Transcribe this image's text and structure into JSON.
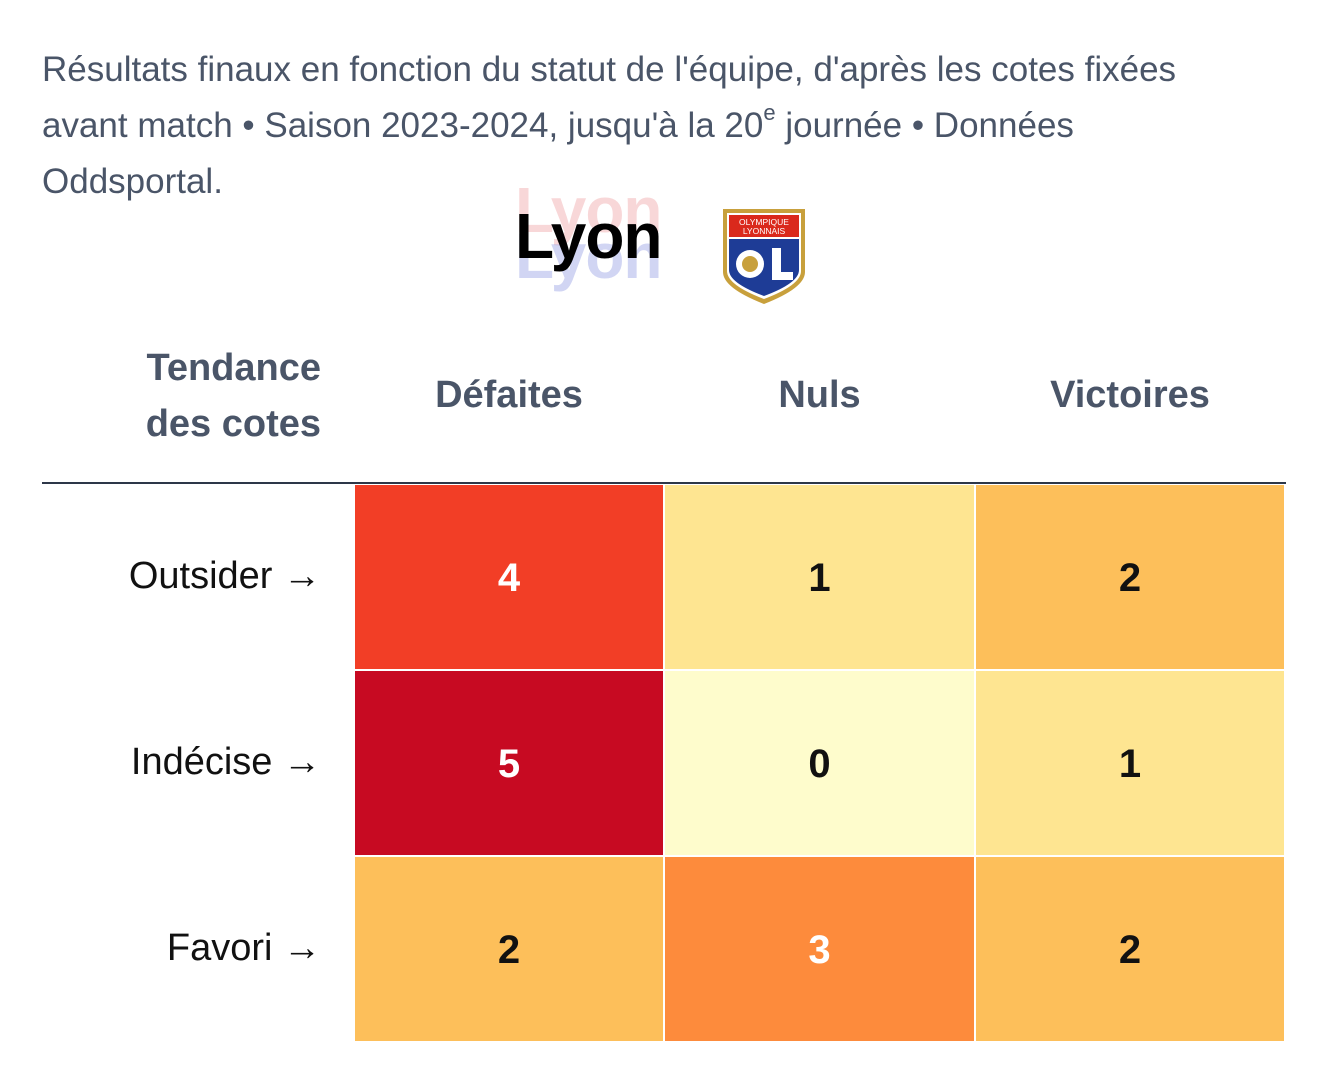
{
  "subtitle": {
    "before": "Résultats finaux en fonction du statut de l'équipe, d'après les cotes fixées avant match • Saison 2023-2024, jusqu'à la 20",
    "sup": "e",
    "after": " journée • Données Oddsportal."
  },
  "team": {
    "name": "Lyon",
    "logo": {
      "top_text": "OLYMPIQUE",
      "bottom_text": "LYONNAIS",
      "letters": "OL",
      "colors": {
        "red": "#da291c",
        "blue": "#1e3c96",
        "gold": "#c8a03c"
      }
    }
  },
  "chart_data": {
    "type": "heatmap",
    "row_axis_title": "Tendance des cotes",
    "columns": [
      "Défaites",
      "Nuls",
      "Victoires"
    ],
    "rows": [
      "Outsider →",
      "Indécise →",
      "Favori →"
    ],
    "values": [
      [
        4,
        1,
        2
      ],
      [
        5,
        0,
        1
      ],
      [
        2,
        3,
        2
      ]
    ],
    "colorscale": {
      "0": "#fefccc",
      "1": "#fee591",
      "2": "#fdbf5a",
      "3": "#fd8b3c",
      "4": "#f23e26",
      "5": "#c70a22"
    },
    "text_color_light": "#ffffff",
    "text_color_dark": "#111111"
  }
}
